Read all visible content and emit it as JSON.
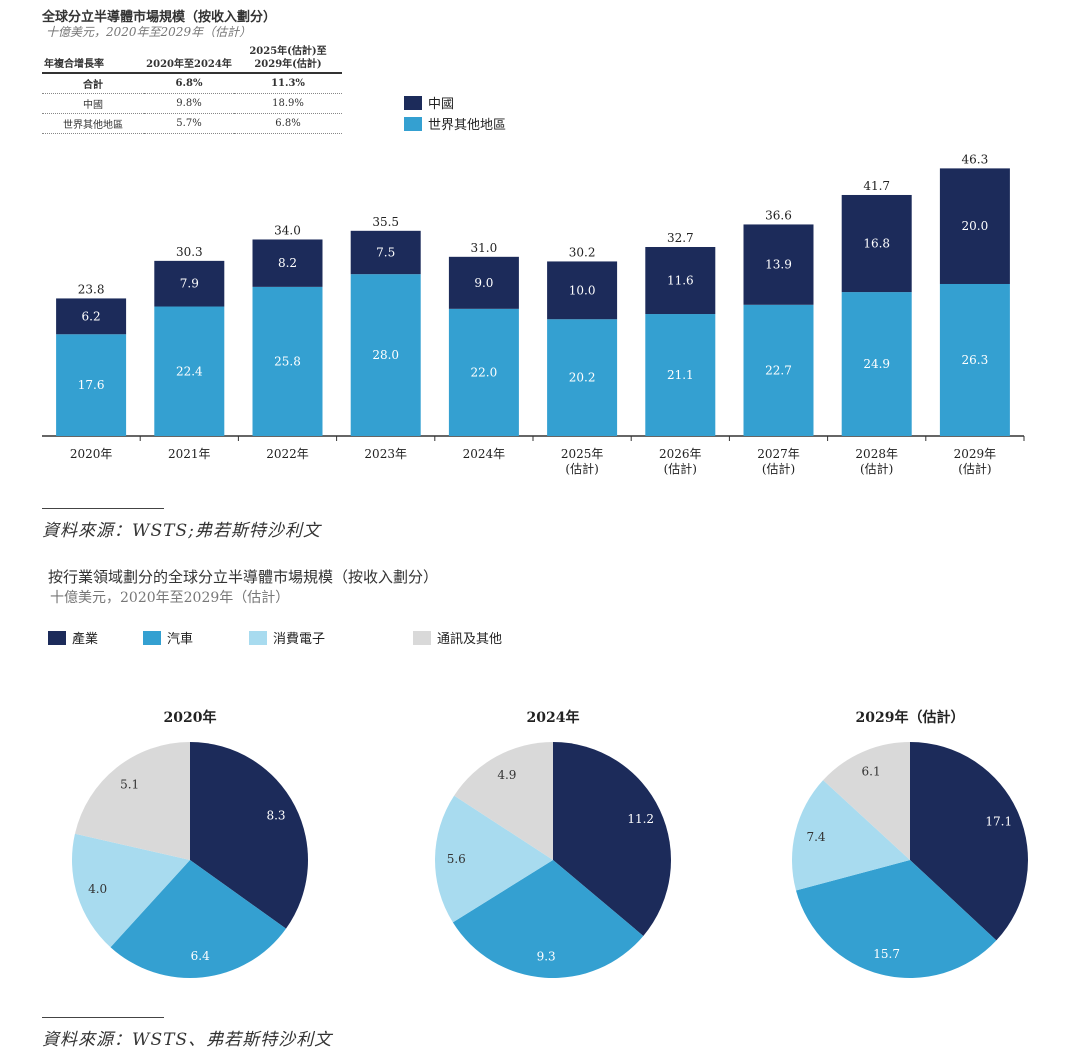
{
  "chart1": {
    "title": "全球分立半導體市場規模（按收入劃分）",
    "subtitle": "十億美元，2020年至2029年（估計）",
    "cagr_table": {
      "headers": [
        "年複合增長率",
        "2020年至2024年",
        "2025年(估計)至",
        "2029年(估計)"
      ],
      "rows": [
        {
          "label": "合計",
          "a": "6.8%",
          "b": "11.3%"
        },
        {
          "label": "中國",
          "a": "9.8%",
          "b": "18.9%"
        },
        {
          "label": "世界其他地區",
          "a": "5.7%",
          "b": "6.8%"
        }
      ]
    },
    "source": "資料來源：WSTS;弗若斯特沙利文"
  },
  "chart2": {
    "title": "按行業領域劃分的全球分立半導體市場規模（按收入劃分）",
    "subtitle": "十億美元，2020年至2029年（估計）",
    "source": "資料來源：WSTS、弗若斯特沙利文"
  },
  "colors": {
    "china": "#1c2b5a",
    "rest_of_world": "#34a0d1",
    "industrial": "#1c2b5a",
    "automotive": "#34a0d1",
    "consumer": "#a8dbef",
    "comms": "#d9d9d9"
  },
  "chart_data": [
    {
      "type": "bar",
      "stacked": true,
      "categories": [
        "2020年",
        "2021年",
        "2022年",
        "2023年",
        "2024年",
        "2025年(估計)",
        "2026年(估計)",
        "2027年(估計)",
        "2028年(估計)",
        "2029年(估計)"
      ],
      "category_lines": [
        [
          "2020年"
        ],
        [
          "2021年"
        ],
        [
          "2022年"
        ],
        [
          "2023年"
        ],
        [
          "2024年"
        ],
        [
          "2025年",
          "(估計)"
        ],
        [
          "2026年",
          "(估計)"
        ],
        [
          "2027年",
          "(估計)"
        ],
        [
          "2028年",
          "(估計)"
        ],
        [
          "2029年",
          "(估計)"
        ]
      ],
      "series": [
        {
          "name": "世界其他地區",
          "values": [
            "17.6",
            "22.4",
            "25.8",
            "28.0",
            "22.0",
            "20.2",
            "21.1",
            "22.7",
            "24.9",
            "26.3"
          ]
        },
        {
          "name": "中國",
          "values": [
            "6.2",
            "7.9",
            "8.2",
            "7.5",
            "9.0",
            "10.0",
            "11.6",
            "13.9",
            "16.8",
            "20.0"
          ]
        }
      ],
      "totals": [
        "23.8",
        "30.3",
        "34.0",
        "35.5",
        "31.0",
        "30.2",
        "32.7",
        "36.6",
        "41.7",
        "46.3"
      ],
      "legend": [
        "中國",
        "世界其他地區"
      ],
      "legend_position": "top-right",
      "ylim": [
        0,
        50
      ],
      "grid": false
    },
    {
      "type": "pie",
      "legend": [
        "產業",
        "汽車",
        "消費電子",
        "通訊及其他"
      ],
      "legend_position": "top",
      "pies": [
        {
          "title": "2020年",
          "labels": [
            "產業",
            "汽車",
            "消費電子",
            "通訊及其他"
          ],
          "values": [
            "8.3",
            "6.4",
            "4.0",
            "5.1"
          ]
        },
        {
          "title": "2024年",
          "labels": [
            "產業",
            "汽車",
            "消費電子",
            "通訊及其他"
          ],
          "values": [
            "11.2",
            "9.3",
            "5.6",
            "4.9"
          ]
        },
        {
          "title": "2029年（估計）",
          "labels": [
            "產業",
            "汽車",
            "消費電子",
            "通訊及其他"
          ],
          "values": [
            "17.1",
            "15.7",
            "7.4",
            "6.1"
          ]
        }
      ]
    }
  ]
}
